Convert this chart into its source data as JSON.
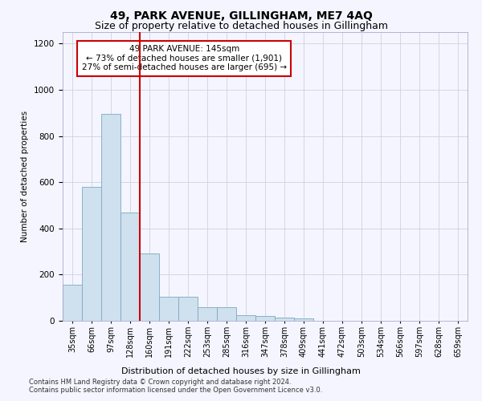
{
  "title": "49, PARK AVENUE, GILLINGHAM, ME7 4AQ",
  "subtitle": "Size of property relative to detached houses in Gillingham",
  "xlabel": "Distribution of detached houses by size in Gillingham",
  "ylabel": "Number of detached properties",
  "categories": [
    "35sqm",
    "66sqm",
    "97sqm",
    "128sqm",
    "160sqm",
    "191sqm",
    "222sqm",
    "253sqm",
    "285sqm",
    "316sqm",
    "347sqm",
    "378sqm",
    "409sqm",
    "441sqm",
    "472sqm",
    "503sqm",
    "534sqm",
    "566sqm",
    "597sqm",
    "628sqm",
    "659sqm"
  ],
  "values": [
    155,
    580,
    895,
    470,
    290,
    105,
    105,
    60,
    60,
    25,
    20,
    15,
    10,
    0,
    0,
    0,
    0,
    0,
    0,
    0,
    0
  ],
  "bar_color": "#cfe0ef",
  "bar_edge_color": "#7aaabf",
  "vline_x": 3.5,
  "vline_color": "#cc0000",
  "annotation_text": "49 PARK AVENUE: 145sqm\n← 73% of detached houses are smaller (1,901)\n27% of semi-detached houses are larger (695) →",
  "annotation_box_color": "#ffffff",
  "annotation_box_edge": "#cc0000",
  "ylim": [
    0,
    1250
  ],
  "yticks": [
    0,
    200,
    400,
    600,
    800,
    1000,
    1200
  ],
  "grid_color": "#d0d0e0",
  "footer_line1": "Contains HM Land Registry data © Crown copyright and database right 2024.",
  "footer_line2": "Contains public sector information licensed under the Open Government Licence v3.0.",
  "bg_color": "#f5f5ff",
  "title_fontsize": 10,
  "subtitle_fontsize": 9,
  "annot_fontsize": 7.5,
  "xlabel_fontsize": 8,
  "ylabel_fontsize": 7.5,
  "tick_fontsize": 7,
  "ytick_fontsize": 7.5,
  "footer_fontsize": 6
}
